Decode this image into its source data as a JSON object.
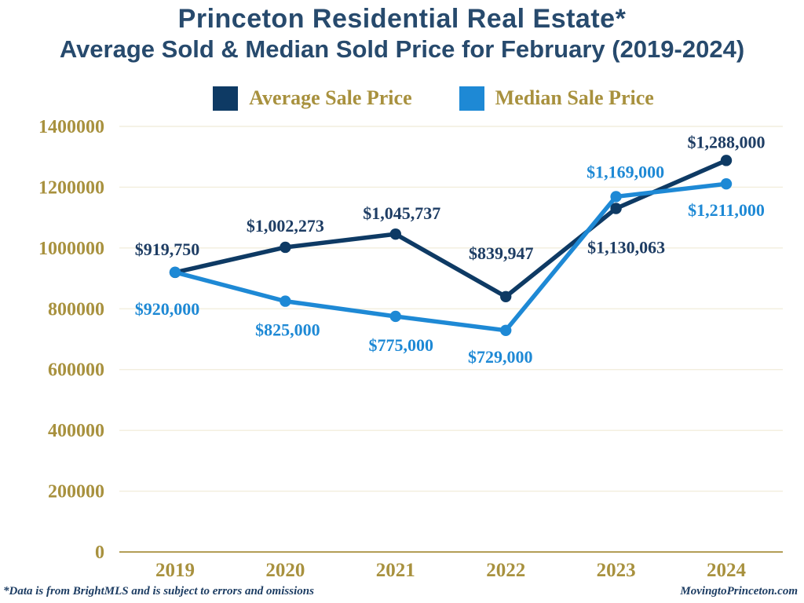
{
  "title": {
    "line1": "Princeton Residential Real Estate*",
    "line2": "Average Sold & Median Sold Price for February (2019-2024)"
  },
  "legend": {
    "items": [
      "Average Sale Price",
      "Median Sale Price"
    ]
  },
  "footer": {
    "left": "*Data is from BrightMLS and is subject to errors and omissions",
    "right": "MovingtoPrinceton.com"
  },
  "colors": {
    "title_navy": "#274a6d",
    "axis_gold": "#a8913e",
    "gridline": "#f2eedd",
    "average_navy": "#0e3a64",
    "median_blue": "#1e89d5",
    "footer_navy": "#1d3d63"
  },
  "chart_data": {
    "type": "line",
    "title": "Princeton Residential Real Estate* Average Sold & Median Sold Price for February (2019-2024)",
    "xlabel": "",
    "ylabel": "",
    "categories": [
      "2019",
      "2020",
      "2021",
      "2022",
      "2023",
      "2024"
    ],
    "series": [
      {
        "name": "Average Sale Price",
        "color": "#0e3a64",
        "label_color": "#1e3d64",
        "values": [
          919750,
          1002273,
          1045737,
          839947,
          1130063,
          1288000
        ],
        "labels": [
          "$919,750",
          "$1,002,273",
          "$1,045,737",
          "$839,947",
          "$1,130,063",
          "$1,288,000"
        ]
      },
      {
        "name": "Median Sale Price",
        "color": "#1e89d5",
        "label_color": "#1e89d5",
        "values": [
          920000,
          825000,
          775000,
          729000,
          1169000,
          1211000
        ],
        "labels": [
          "$920,000",
          "$825,000",
          "$775,000",
          "$729,000",
          "$1,169,000",
          "$1,211,000"
        ]
      }
    ],
    "ylim": [
      0,
      1400000
    ],
    "yticks": [
      0,
      200000,
      400000,
      600000,
      800000,
      1000000,
      1200000,
      1400000
    ],
    "ytick_labels": [
      "0",
      "200000",
      "400000",
      "600000",
      "800000",
      "1000000",
      "1200000",
      "1400000"
    ],
    "grid": true,
    "legend_position": "top"
  }
}
